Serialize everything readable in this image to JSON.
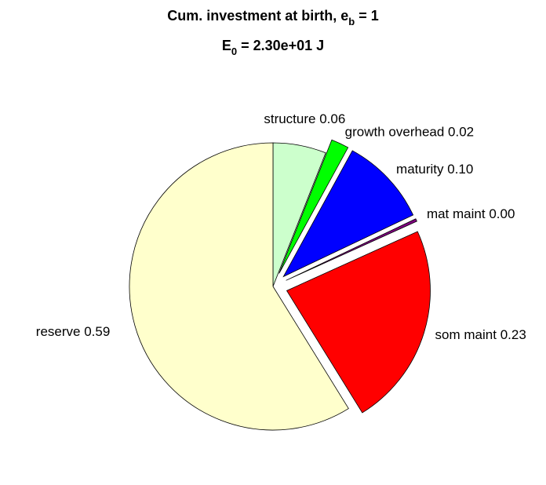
{
  "chart_data": {
    "type": "pie",
    "title": {
      "text": "Cum. investment at birth, e",
      "subscript": "b",
      "tail": " = 1"
    },
    "subtitle": {
      "text": "E",
      "subscript": "0",
      "tail": " = 2.30e+01 J"
    },
    "categories": [
      "structure",
      "growth overhead",
      "maturity",
      "mat maint",
      "som maint",
      "reserve"
    ],
    "values": [
      0.06,
      0.02,
      0.1,
      0.003,
      0.23,
      0.59
    ],
    "value_labels": [
      "0.06",
      "0.02",
      "0.10",
      "0.00",
      "0.23",
      "0.59"
    ],
    "colors": [
      "#ccffcc",
      "#00ff00",
      "#0000ff",
      "#800080",
      "#ff0000",
      "#ffffcc"
    ],
    "explode": [
      false,
      true,
      true,
      true,
      true,
      false
    ]
  }
}
